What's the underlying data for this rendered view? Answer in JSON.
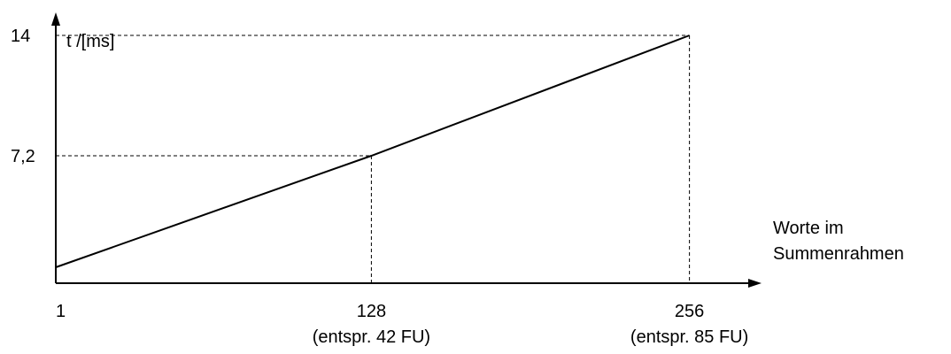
{
  "chart_data": {
    "type": "line",
    "title": "",
    "ylabel": "t /[ms]",
    "xlabel_lines": [
      "Worte im",
      "Summenrahmen"
    ],
    "x": [
      1,
      128,
      256
    ],
    "series": [
      {
        "values": [
          0.9,
          7.2,
          14
        ]
      }
    ],
    "xlim": [
      1,
      285
    ],
    "ylim": [
      0,
      15.3
    ],
    "x_ticks": [
      {
        "value": 1,
        "label": "1",
        "sublabel": ""
      },
      {
        "value": 128,
        "label": "128",
        "sublabel": "(entspr. 42 FU)"
      },
      {
        "value": 256,
        "label": "256",
        "sublabel": "(entspr. 85 FU)"
      }
    ],
    "y_ticks": [
      {
        "value": 7.2,
        "label": "7,2"
      },
      {
        "value": 14,
        "label": "14"
      }
    ],
    "guides": [
      {
        "x": 128,
        "y": 7.2
      },
      {
        "x": 256,
        "y": 14
      }
    ],
    "grid": false,
    "legend": "none",
    "line_color": "#000000"
  }
}
